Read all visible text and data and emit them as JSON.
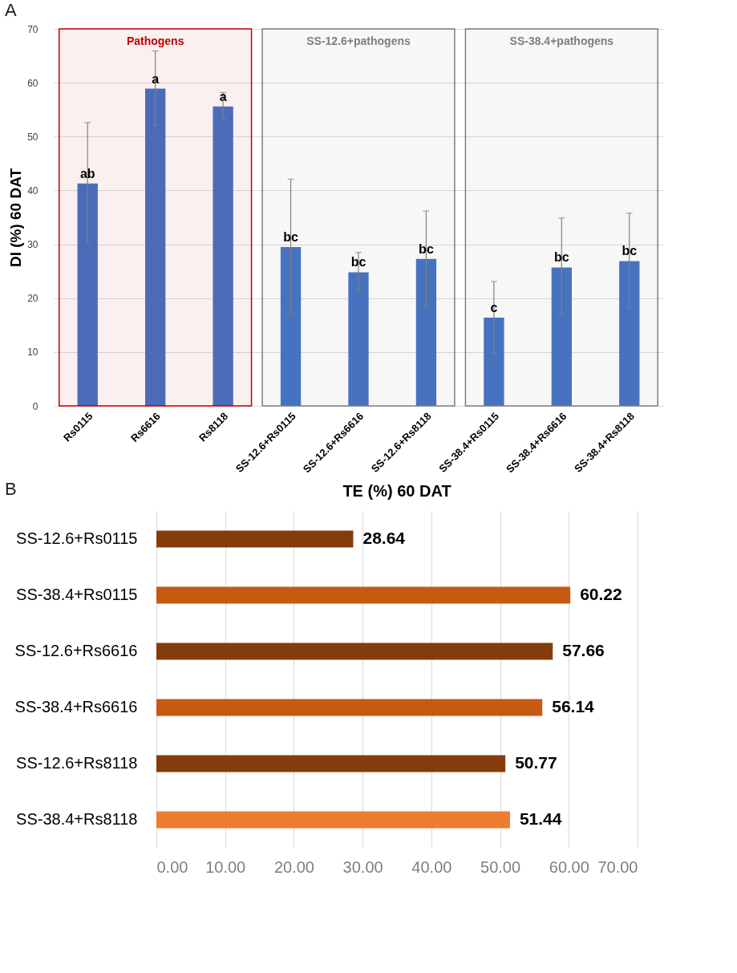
{
  "chart_data": [
    {
      "type": "bar",
      "categories": [
        "Rs0115",
        "Rs6616",
        "Rs8118",
        "SS-12.6+Rs0115",
        "SS-12.6+Rs6616",
        "SS-12.6+Rs8118",
        "SS-38.4+Rs0115",
        "SS-38.4+Rs6616",
        "SS-38.4+Rs8118"
      ],
      "values": [
        41.3,
        58.9,
        55.6,
        29.5,
        24.8,
        27.3,
        16.4,
        25.7,
        26.9
      ],
      "errors": [
        [
          30.1,
          52.6
        ],
        [
          52.1,
          65.9
        ],
        [
          53.2,
          58.2
        ],
        [
          17.0,
          42.1
        ],
        [
          21.4,
          28.5
        ],
        [
          18.5,
          36.2
        ],
        [
          9.8,
          23.1
        ],
        [
          16.8,
          34.9
        ],
        [
          18.2,
          35.8
        ]
      ],
      "color": "#4472c4",
      "ylabel": "DI (%) 60 DAT",
      "ylim": [
        0,
        70
      ],
      "yticks": [
        0,
        10,
        20,
        30,
        40,
        50,
        60,
        70
      ],
      "grid": "y",
      "bands": [
        {
          "axis": "x",
          "from": "Rs0115",
          "to": "Rs8118",
          "label": "Pathogens",
          "color": "#c00000"
        },
        {
          "axis": "x",
          "from": "SS-12.6+Rs0115",
          "to": "SS-12.6+Rs8118",
          "label": "SS-12.6+pathogens",
          "color": "#7f7f7f"
        },
        {
          "axis": "x",
          "from": "SS-38.4+Rs0115",
          "to": "SS-38.4+Rs8118",
          "label": "SS-38.4+pathogens",
          "color": "#7f7f7f"
        }
      ],
      "annotations": [
        "A",
        {
          "text": "ab",
          "x": "Rs0115",
          "y": 41.3
        },
        {
          "text": "a",
          "x": "Rs6616",
          "y": 58.9
        },
        {
          "text": "a",
          "x": "Rs8118",
          "y": 55.6
        },
        {
          "text": "bc",
          "x": "SS-12.6+Rs0115",
          "y": 29.5
        },
        {
          "text": "bc",
          "x": "SS-12.6+Rs6616",
          "y": 24.8
        },
        {
          "text": "bc",
          "x": "SS-12.6+Rs8118",
          "y": 27.3
        },
        {
          "text": "c",
          "x": "SS-38.4+Rs0115",
          "y": 16.4
        },
        {
          "text": "bc",
          "x": "SS-38.4+Rs6616",
          "y": 25.7
        },
        {
          "text": "bc",
          "x": "SS-38.4+Rs8118",
          "y": 26.9
        }
      ]
    },
    {
      "type": "bar",
      "orientation": "horizontal",
      "title": "TE (%) 60  DAT",
      "categories": [
        "SS-12.6+Rs0115",
        "SS-38.4+Rs0115",
        "SS-12.6+Rs6616",
        "SS-38.4+Rs6616",
        "SS-12.6+Rs8118",
        "SS-38.4+Rs8118"
      ],
      "values": [
        28.64,
        60.22,
        57.66,
        56.14,
        50.77,
        51.44
      ],
      "colors": [
        "#843c0c",
        "#c55a11",
        "#843c0c",
        "#c55a11",
        "#843c0c",
        "#ed7d31"
      ],
      "data_labels": true,
      "xlim": [
        0,
        70
      ],
      "xticks": [
        {
          "value": 0,
          "label": "0.00"
        },
        {
          "value": 10,
          "label": "10.00"
        },
        {
          "value": 20,
          "label": "20.00"
        },
        {
          "value": 30,
          "label": "30.00"
        },
        {
          "value": 40,
          "label": "40.00"
        },
        {
          "value": 50,
          "label": "50.00"
        },
        {
          "value": 60,
          "label": "60.00"
        },
        {
          "value": 70,
          "label": "70.00"
        }
      ],
      "grid": "x",
      "annotations": [
        "B"
      ]
    }
  ]
}
